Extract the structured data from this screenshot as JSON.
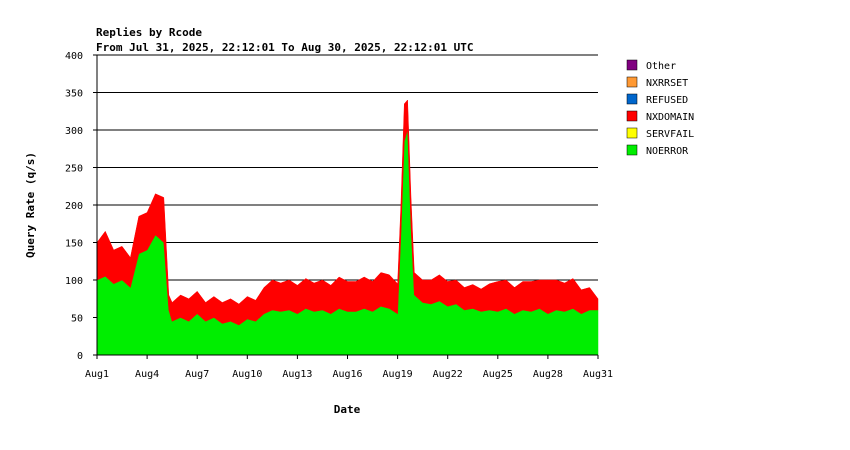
{
  "chart_data": {
    "type": "area",
    "stacked": true,
    "title": "Replies by Rcode",
    "subtitle": "From Jul 31, 2025, 22:12:01 To Aug 30, 2025, 22:12:01 UTC",
    "xlabel": "Date",
    "ylabel": "Query Rate (q/s)",
    "ylim": [
      0,
      400
    ],
    "yticks": [
      0,
      50,
      100,
      150,
      200,
      250,
      300,
      350,
      400
    ],
    "xlim": [
      1,
      31
    ],
    "xticks": [
      {
        "day": 1,
        "label": "Aug1"
      },
      {
        "day": 4,
        "label": "Aug4"
      },
      {
        "day": 7,
        "label": "Aug7"
      },
      {
        "day": 10,
        "label": "Aug10"
      },
      {
        "day": 13,
        "label": "Aug13"
      },
      {
        "day": 16,
        "label": "Aug16"
      },
      {
        "day": 19,
        "label": "Aug19"
      },
      {
        "day": 22,
        "label": "Aug22"
      },
      {
        "day": 25,
        "label": "Aug25"
      },
      {
        "day": 28,
        "label": "Aug28"
      },
      {
        "day": 31,
        "label": "Aug31"
      }
    ],
    "grid": "horizontal",
    "legend_position": "right",
    "legend": [
      {
        "name": "Other",
        "color": "#800080"
      },
      {
        "name": "NXRRSET",
        "color": "#ff9933"
      },
      {
        "name": "REFUSED",
        "color": "#0066cc"
      },
      {
        "name": "NXDOMAIN",
        "color": "#ff0000"
      },
      {
        "name": "SERVFAIL",
        "color": "#ffff00"
      },
      {
        "name": "NOERROR",
        "color": "#00ee00"
      }
    ],
    "x_day": [
      1.0,
      1.5,
      2.0,
      2.5,
      3.0,
      3.5,
      4.0,
      4.5,
      5.0,
      5.3,
      5.5,
      6.0,
      6.5,
      7.0,
      7.5,
      8.0,
      8.5,
      9.0,
      9.5,
      10.0,
      10.5,
      11.0,
      11.5,
      12.0,
      12.5,
      13.0,
      13.5,
      14.0,
      14.5,
      15.0,
      15.5,
      16.0,
      16.5,
      17.0,
      17.5,
      18.0,
      18.5,
      19.0,
      19.2,
      19.4,
      19.6,
      19.8,
      20.0,
      20.5,
      21.0,
      21.5,
      22.0,
      22.5,
      23.0,
      23.5,
      24.0,
      24.5,
      25.0,
      25.5,
      26.0,
      26.5,
      27.0,
      27.5,
      28.0,
      28.5,
      29.0,
      29.5,
      30.0,
      30.5,
      31.0
    ],
    "series": [
      {
        "name": "NOERROR",
        "values": [
          100,
          105,
          95,
          100,
          90,
          135,
          140,
          160,
          150,
          60,
          45,
          50,
          45,
          55,
          45,
          50,
          42,
          45,
          40,
          48,
          45,
          55,
          60,
          58,
          60,
          55,
          62,
          58,
          60,
          55,
          62,
          58,
          58,
          62,
          58,
          65,
          62,
          55,
          160,
          285,
          300,
          170,
          80,
          70,
          68,
          72,
          65,
          68,
          60,
          62,
          58,
          60,
          58,
          62,
          55,
          60,
          58,
          62,
          55,
          60,
          58,
          62,
          55,
          60,
          60
        ]
      },
      {
        "name": "NXDOMAIN",
        "values": [
          50,
          60,
          45,
          45,
          40,
          50,
          50,
          55,
          60,
          20,
          25,
          30,
          30,
          30,
          25,
          28,
          28,
          30,
          28,
          30,
          28,
          35,
          40,
          38,
          40,
          38,
          40,
          38,
          40,
          38,
          42,
          40,
          40,
          42,
          40,
          45,
          45,
          40,
          40,
          50,
          40,
          40,
          30,
          30,
          32,
          35,
          33,
          32,
          30,
          32,
          30,
          35,
          40,
          38,
          35,
          38,
          40,
          38,
          45,
          40,
          38,
          40,
          32,
          30,
          15
        ]
      },
      {
        "name": "SERVFAIL",
        "values": [
          0,
          0,
          0,
          0,
          0,
          0,
          0,
          0,
          0,
          0,
          0,
          0,
          0,
          0,
          0,
          0,
          0,
          0,
          0,
          0,
          0,
          0,
          0,
          0,
          0,
          0,
          0,
          0,
          0,
          0,
          0,
          0,
          0,
          0,
          0,
          0,
          0,
          0,
          0,
          0,
          0,
          0,
          0,
          0,
          0,
          0,
          0,
          0,
          0,
          0,
          0,
          0,
          0,
          0,
          0,
          0,
          0,
          0,
          0,
          0,
          0,
          0,
          0,
          0,
          0
        ]
      },
      {
        "name": "REFUSED",
        "values": [
          0,
          0,
          0,
          0,
          0,
          0,
          0,
          0,
          0,
          0,
          0,
          0,
          0,
          0,
          0,
          0,
          0,
          0,
          0,
          0,
          0,
          0,
          0,
          0,
          0,
          0,
          0,
          0,
          0,
          0,
          0,
          0,
          0,
          0,
          0,
          0,
          0,
          0,
          0,
          0,
          0,
          0,
          0,
          0,
          0,
          0,
          0,
          0,
          0,
          0,
          0,
          0,
          0,
          0,
          0,
          0,
          0,
          0,
          0,
          0,
          0,
          0,
          0,
          0,
          0
        ]
      },
      {
        "name": "NXRRSET",
        "values": [
          0,
          0,
          0,
          0,
          0,
          0,
          0,
          0,
          0,
          0,
          0,
          0,
          0,
          0,
          0,
          0,
          0,
          0,
          0,
          0,
          0,
          0,
          0,
          0,
          0,
          0,
          0,
          0,
          0,
          0,
          0,
          0,
          0,
          0,
          0,
          0,
          0,
          0,
          0,
          0,
          0,
          0,
          0,
          0,
          0,
          0,
          0,
          0,
          0,
          0,
          0,
          0,
          0,
          0,
          0,
          0,
          0,
          0,
          0,
          0,
          0,
          0,
          0,
          0,
          0
        ]
      },
      {
        "name": "Other",
        "values": [
          0,
          0,
          0,
          0,
          0,
          0,
          0,
          0,
          0,
          0,
          0,
          0,
          0,
          0,
          0,
          0,
          0,
          0,
          0,
          0,
          0,
          0,
          0,
          0,
          0,
          0,
          0,
          0,
          0,
          0,
          0,
          0,
          0,
          0,
          0,
          0,
          0,
          0,
          0,
          0,
          0,
          0,
          0,
          0,
          0,
          0,
          0,
          0,
          0,
          0,
          0,
          0,
          0,
          0,
          0,
          0,
          0,
          0,
          0,
          0,
          0,
          0,
          0,
          0,
          0
        ]
      }
    ]
  }
}
